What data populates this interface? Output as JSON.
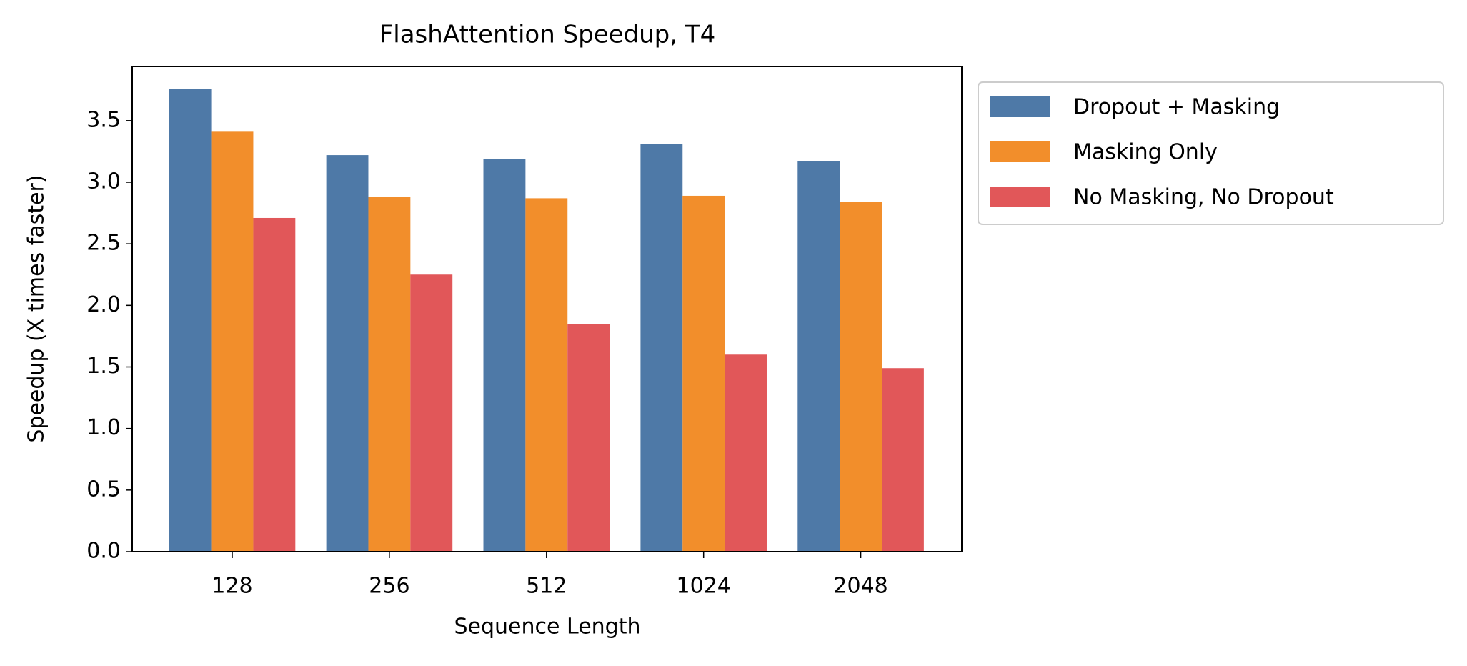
{
  "chart_data": {
    "type": "bar",
    "title": "FlashAttention Speedup, T4",
    "xlabel": "Sequence Length",
    "ylabel": "Speedup (X times faster)",
    "categories": [
      "128",
      "256",
      "512",
      "1024",
      "2048"
    ],
    "series": [
      {
        "name": "Dropout + Masking",
        "color": "#4e79a7",
        "values": [
          3.76,
          3.22,
          3.19,
          3.31,
          3.17
        ]
      },
      {
        "name": "Masking Only",
        "color": "#f28e2b",
        "values": [
          3.41,
          2.88,
          2.87,
          2.89,
          2.84
        ]
      },
      {
        "name": "No Masking, No Dropout",
        "color": "#e15759",
        "values": [
          2.71,
          2.25,
          1.85,
          1.6,
          1.49
        ]
      }
    ],
    "ylim": [
      0,
      3.94
    ],
    "yticks": [
      {
        "value": 0,
        "label": "0.0"
      },
      {
        "value": 0.5,
        "label": "0.5"
      },
      {
        "value": 1,
        "label": "1.0"
      },
      {
        "value": 1.5,
        "label": "1.5"
      },
      {
        "value": 2,
        "label": "2.0"
      },
      {
        "value": 2.5,
        "label": "2.5"
      },
      {
        "value": 3,
        "label": "3.0"
      },
      {
        "value": 3.5,
        "label": "3.5"
      }
    ],
    "legend": "outside-upper-right"
  }
}
